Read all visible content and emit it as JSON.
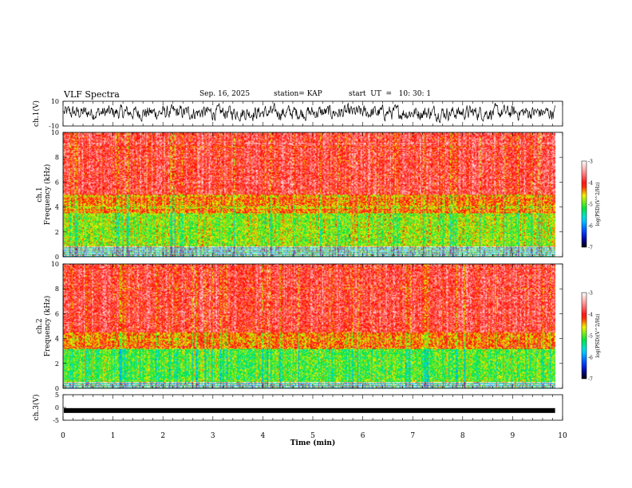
{
  "header": {
    "title": "VLF Spectra",
    "date": "Sep. 16, 2025",
    "station": "station= KAP",
    "start": "start  UT  =   10: 30: 1"
  },
  "chart_data": [
    {
      "type": "line",
      "panel": "ch1-waveform",
      "ylabel": "ch.1(V)",
      "ylim": [
        -10,
        10
      ],
      "yticks": [
        "10",
        "-10"
      ],
      "xlim": [
        0,
        9.85
      ],
      "description_series": "noisy waveform oscillating roughly between -7 and +8 V"
    },
    {
      "type": "heatmap",
      "panel": "ch1-spectrogram",
      "ylabel": "ch.1\nFrequency  (kHz)",
      "ylim": [
        0,
        10
      ],
      "yticks": [
        "0",
        "2",
        "4",
        "6",
        "8",
        "10"
      ],
      "xlim": [
        0,
        9.85
      ],
      "bands": [
        {
          "from": 0,
          "to": 0.8,
          "level": "mixed"
        },
        {
          "from": 0.8,
          "to": 3.5,
          "level": -4.8
        },
        {
          "from": 3.5,
          "to": 5.0,
          "level": -4.3
        },
        {
          "from": 5.0,
          "to": 10,
          "level": -3.8
        }
      ],
      "colorbar": {
        "label": "log(PSD)(V^2/Hz)",
        "min": -7,
        "max": -3,
        "ticks": [
          "-3",
          "-4",
          "-5",
          "-6",
          "-7"
        ]
      }
    },
    {
      "type": "heatmap",
      "panel": "ch2-spectrogram",
      "ylabel": "ch.2\nFrequency  (kHz)",
      "ylim": [
        0,
        10
      ],
      "yticks": [
        "0",
        "2",
        "4",
        "6",
        "8",
        "10"
      ],
      "xlim": [
        0,
        9.85
      ],
      "bands": [
        {
          "from": 0,
          "to": 0.5,
          "level": "mixed"
        },
        {
          "from": 0.5,
          "to": 3.2,
          "level": -5.0
        },
        {
          "from": 3.2,
          "to": 4.5,
          "level": -4.3
        },
        {
          "from": 4.5,
          "to": 10,
          "level": -3.8
        }
      ],
      "colorbar": {
        "label": "log(PSD)(V^2/Hz)",
        "min": -7,
        "max": -3,
        "ticks": [
          "-3",
          "-4",
          "-5",
          "-6",
          "-7"
        ]
      }
    },
    {
      "type": "line",
      "panel": "ch3-waveform",
      "ylabel": "ch.3(V)",
      "ylim": [
        -5,
        5
      ],
      "yticks": [
        "5",
        "0",
        "-5"
      ],
      "xlim": [
        0,
        9.85
      ],
      "level": -1.2
    }
  ],
  "xaxis": {
    "label": "Time  (min)",
    "ticks": [
      "0",
      "1",
      "2",
      "3",
      "4",
      "5",
      "6",
      "7",
      "8",
      "9",
      "10"
    ],
    "range": [
      0,
      10
    ]
  },
  "colors": {
    "background": "#ffffff",
    "ink": "#000000"
  }
}
